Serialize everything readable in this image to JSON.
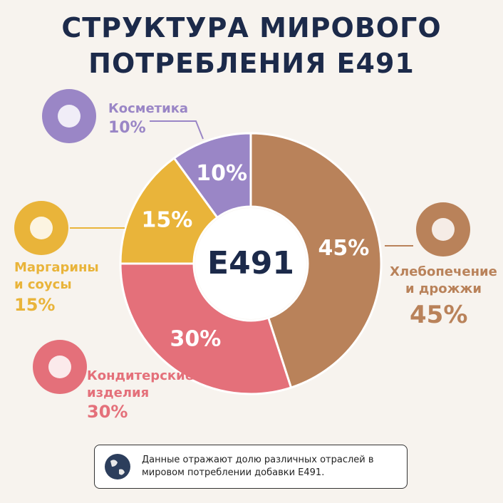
{
  "chart_data": {
    "type": "donut",
    "title": "СТРУКТУРА МИРОВОГО ПОТРЕБЛЕНИЯ E491",
    "center_label": "E491",
    "categories": [
      "Хлебопечение и дрожжи",
      "Кондитерские изделия",
      "Маргарины и соусы",
      "Косметика"
    ],
    "values": [
      45,
      30,
      15,
      10
    ],
    "value_labels": [
      "45%",
      "30%",
      "15%",
      "10%"
    ],
    "colors": [
      "#b9825a",
      "#e4707a",
      "#e9b43a",
      "#9a86c6"
    ],
    "note": "Данные отражают долю различных отраслей в мировом потреблении добавки E491."
  }
}
